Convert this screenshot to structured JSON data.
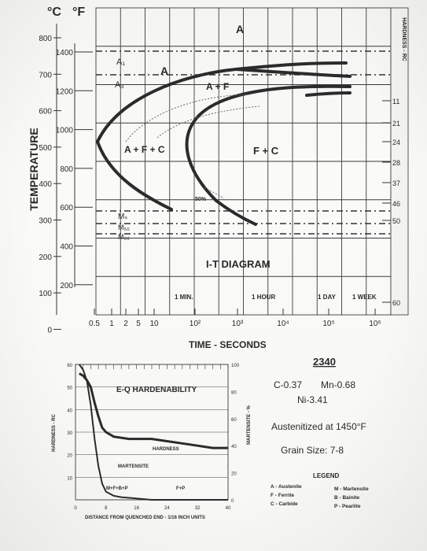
{
  "chart_data": [
    {
      "type": "line",
      "title": "I-T DIAGRAM",
      "xlabel": "TIME - SECONDS",
      "ylabel": "TEMPERATURE",
      "x_scale": "log",
      "x_ticks": [
        "0.5",
        "1",
        "2",
        "5",
        "10",
        "10²",
        "10³",
        "10⁴",
        "10⁵",
        "10⁶"
      ],
      "time_markers": [
        "1 MIN.",
        "1 HOUR",
        "1 DAY",
        "1 WEEK"
      ],
      "y_ticks_c": [
        "800",
        "700",
        "600",
        "500",
        "400",
        "300",
        "200",
        "100",
        "0"
      ],
      "y_ticks_f": [
        "1400",
        "1200",
        "1000",
        "800",
        "600",
        "400",
        "200"
      ],
      "unit_c": "°C",
      "unit_f": "°F",
      "right_axis_label": "HARDNESS - RC",
      "right_axis_ticks": [
        "11",
        "21",
        "24",
        "28",
        "37",
        "46",
        "50",
        "60"
      ],
      "critical_lines": [
        "A₁",
        "A₃",
        "Mₛ",
        "M₅₀",
        "M₉₀"
      ],
      "annotations": [
        "A",
        "A",
        "A + F",
        "A + F + C",
        "F + C",
        "50%"
      ],
      "approx_temps_c": {
        "A3": 710,
        "A1": 650,
        "Ms": 285,
        "M50": 255,
        "M90": 225,
        "nose": 515
      },
      "approx_nose_time_s": 3
    },
    {
      "type": "line",
      "title": "E-Q HARDENABILITY",
      "xlabel": "DISTANCE FROM QUENCHED END - 1/16 INCH UNITS",
      "ylabel": "HARDNESS - RC",
      "ylabel_right": "MARTENSITE - %",
      "x_ticks": [
        "0",
        "8",
        "16",
        "24",
        "32",
        "40"
      ],
      "y_ticks": [
        "10",
        "20",
        "30",
        "40",
        "50",
        "60"
      ],
      "y2_ticks": [
        "0",
        "20",
        "40",
        "60",
        "80",
        "100"
      ],
      "series": [
        {
          "name": "HARDNESS",
          "x": [
            1,
            2,
            3,
            4,
            5,
            6,
            7,
            8,
            10,
            14,
            20,
            24,
            28,
            32,
            36,
            40
          ],
          "y": [
            56,
            55,
            53,
            50,
            43,
            37,
            32,
            30,
            28,
            27,
            27,
            26,
            25,
            24,
            23,
            23
          ]
        },
        {
          "name": "MARTENSITE",
          "x": [
            1,
            2,
            3,
            4,
            5,
            6,
            7,
            8,
            10,
            12,
            16,
            20,
            24,
            32,
            40
          ],
          "y": [
            100,
            96,
            88,
            70,
            45,
            25,
            12,
            6,
            3,
            2,
            1,
            0,
            0,
            0,
            0
          ]
        }
      ],
      "phase_labels": [
        "M+F+B+P",
        "F+P"
      ]
    }
  ],
  "info": {
    "steel": "2340",
    "composition_line1": "C-0.37",
    "composition_line2": "Mn-0.68",
    "composition_line3": "Ni-3.41",
    "austenitized": "Austenitized at 1450°F",
    "grain_size": "Grain Size: 7-8"
  },
  "legend": {
    "title": "LEGEND",
    "items": [
      "A - Austenite",
      "F - Ferrite",
      "C - Carbide",
      "M - Martensite",
      "B - Bainite",
      "P - Pearlite"
    ]
  },
  "colors": {
    "ink": "#2b2b2b",
    "paper": "#f7f7f5"
  }
}
